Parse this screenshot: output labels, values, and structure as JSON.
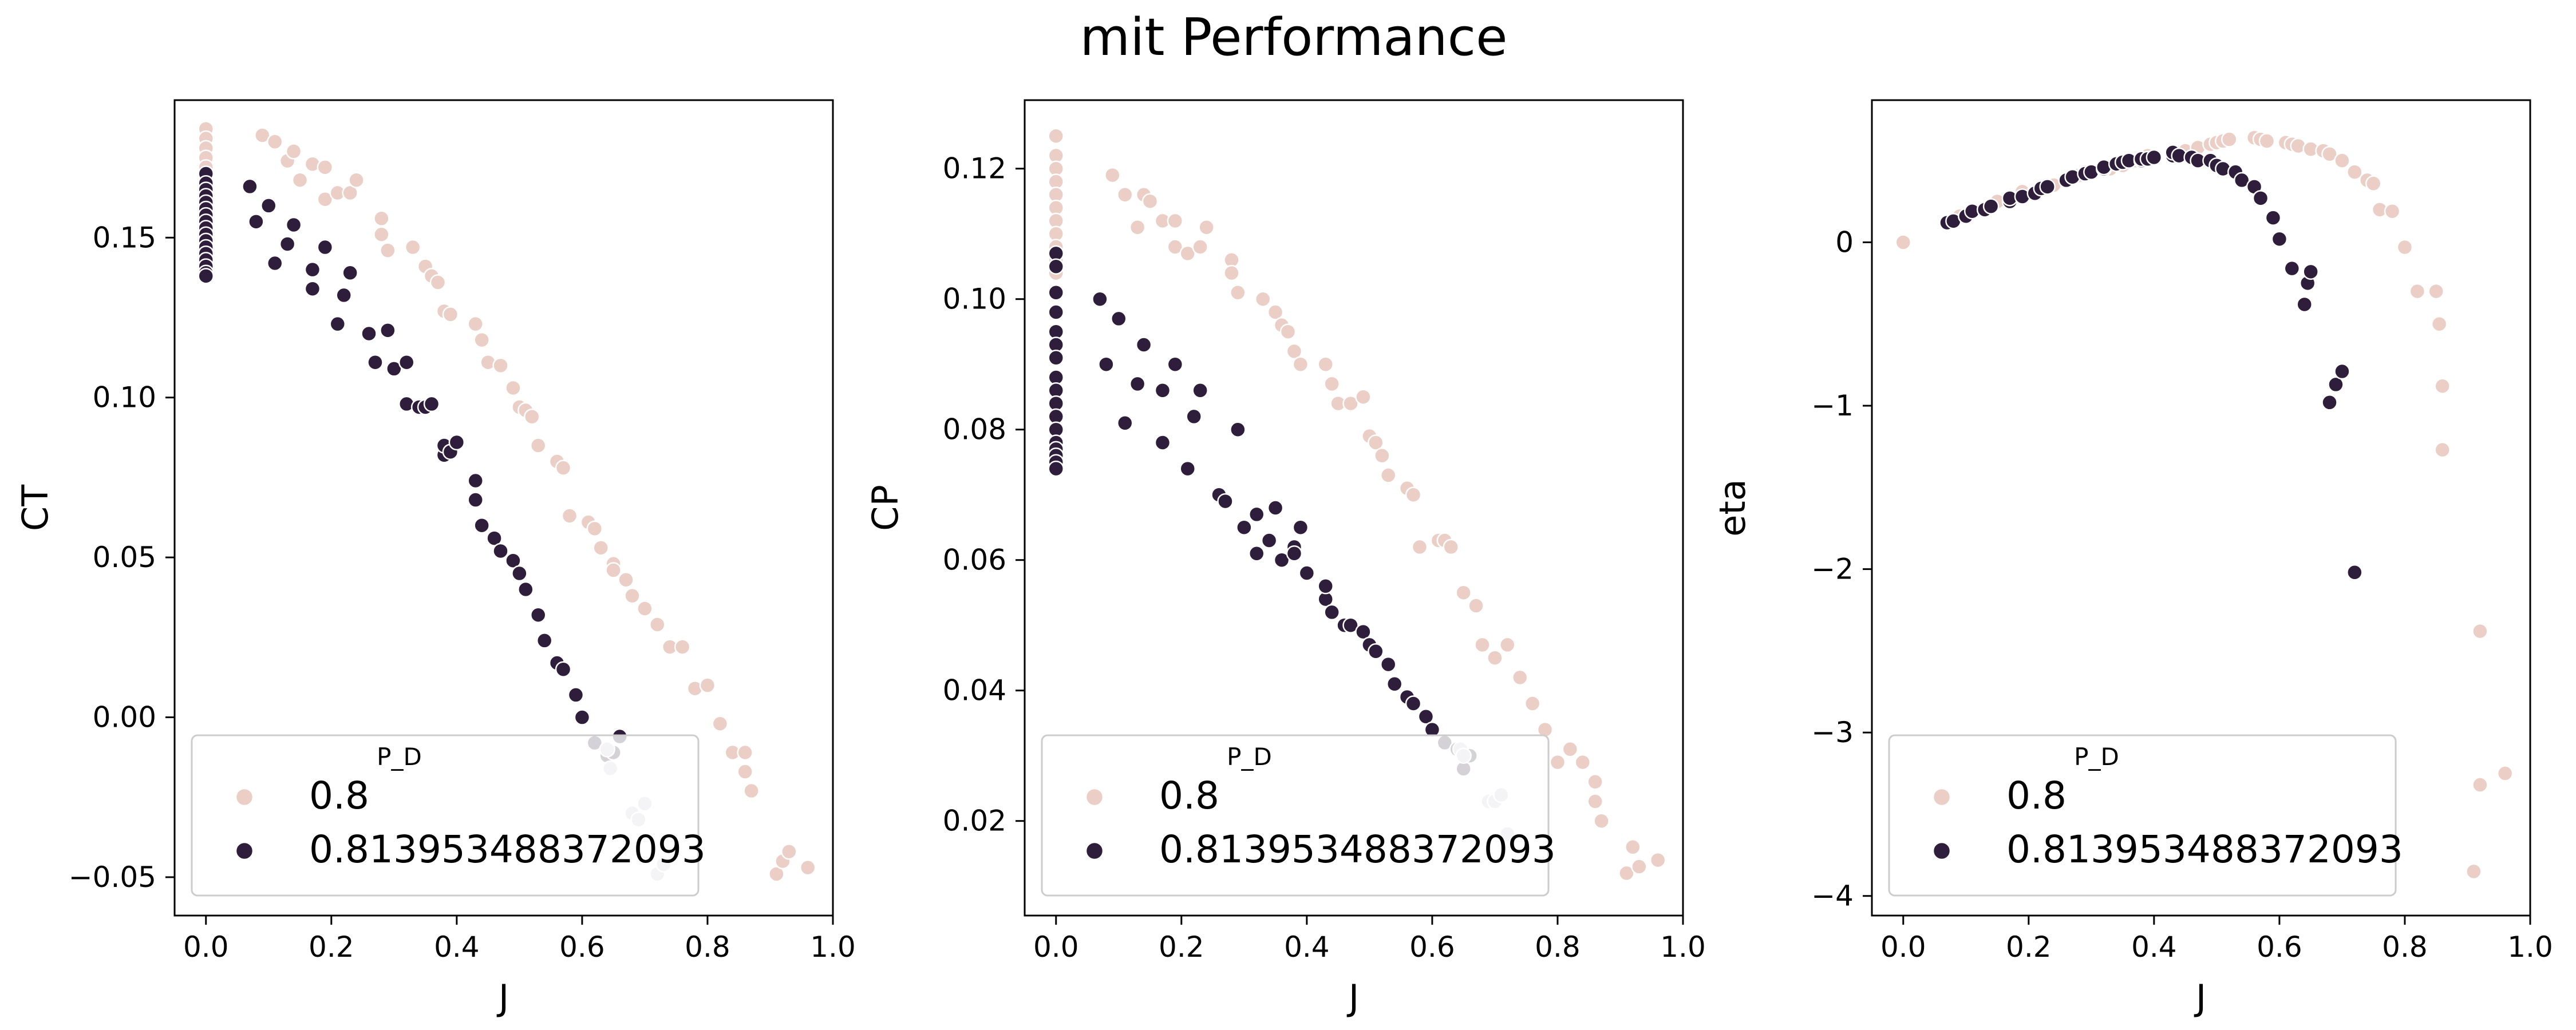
{
  "figure": {
    "title": "mit Performance",
    "legend": {
      "title": "P_D",
      "entries": [
        "0.8",
        "0.813953488372093"
      ]
    }
  },
  "colors": {
    "series_0.8": "#ebcfc6",
    "series_0.813953488372093": "#2e1e3b",
    "axes": "#000000"
  },
  "chart_data": [
    {
      "type": "scatter",
      "xlabel": "J",
      "ylabel": "CT",
      "xlim": [
        -0.05,
        1.0
      ],
      "ylim": [
        -0.062,
        0.193
      ],
      "xticks": [
        "0.0",
        "0.2",
        "0.4",
        "0.6",
        "0.8",
        "1.0"
      ],
      "yticks": [
        "−0.05",
        "0.00",
        "0.05",
        "0.10",
        "0.15"
      ],
      "legend_position": "lower left",
      "series": [
        {
          "name": "0.8",
          "x": [
            0,
            0,
            0,
            0,
            0,
            0,
            0,
            0,
            0,
            0,
            0,
            0,
            0.09,
            0.11,
            0.13,
            0.14,
            0.15,
            0.17,
            0.19,
            0.19,
            0.21,
            0.23,
            0.24,
            0.28,
            0.28,
            0.29,
            0.33,
            0.35,
            0.36,
            0.37,
            0.38,
            0.39,
            0.43,
            0.44,
            0.45,
            0.47,
            0.49,
            0.5,
            0.51,
            0.52,
            0.53,
            0.56,
            0.57,
            0.58,
            0.61,
            0.62,
            0.63,
            0.65,
            0.65,
            0.67,
            0.68,
            0.7,
            0.72,
            0.74,
            0.76,
            0.78,
            0.8,
            0.82,
            0.84,
            0.86,
            0.86,
            0.87,
            0.91,
            0.92,
            0.93,
            0.96
          ],
          "y": [
            0.184,
            0.181,
            0.178,
            0.175,
            0.172,
            0.169,
            0.166,
            0.163,
            0.16,
            0.157,
            0.154,
            0.151,
            0.182,
            0.18,
            0.174,
            0.177,
            0.168,
            0.173,
            0.172,
            0.162,
            0.164,
            0.164,
            0.168,
            0.156,
            0.151,
            0.146,
            0.147,
            0.141,
            0.138,
            0.136,
            0.127,
            0.126,
            0.123,
            0.118,
            0.111,
            0.11,
            0.103,
            0.097,
            0.096,
            0.094,
            0.085,
            0.08,
            0.078,
            0.063,
            0.061,
            0.059,
            0.053,
            0.048,
            0.046,
            0.043,
            0.038,
            0.034,
            0.029,
            0.022,
            0.022,
            0.009,
            0.01,
            -0.002,
            -0.011,
            -0.011,
            -0.017,
            -0.023,
            -0.049,
            -0.045,
            -0.042,
            -0.047
          ]
        },
        {
          "name": "0.813953488372093",
          "x": [
            0,
            0,
            0,
            0,
            0,
            0,
            0,
            0,
            0,
            0,
            0,
            0,
            0,
            0,
            0,
            0,
            0,
            0.07,
            0.08,
            0.1,
            0.11,
            0.13,
            0.14,
            0.17,
            0.17,
            0.19,
            0.21,
            0.22,
            0.23,
            0.26,
            0.27,
            0.29,
            0.3,
            0.32,
            0.32,
            0.34,
            0.35,
            0.36,
            0.38,
            0.38,
            0.39,
            0.4,
            0.43,
            0.43,
            0.44,
            0.46,
            0.47,
            0.49,
            0.5,
            0.51,
            0.53,
            0.54,
            0.56,
            0.57,
            0.59,
            0.6,
            0.62,
            0.64,
            0.65,
            0.66
          ],
          "y": [
            0.17,
            0.167,
            0.165,
            0.163,
            0.161,
            0.159,
            0.157,
            0.155,
            0.153,
            0.151,
            0.149,
            0.147,
            0.145,
            0.143,
            0.141,
            0.139,
            0.138,
            0.166,
            0.155,
            0.16,
            0.142,
            0.148,
            0.154,
            0.134,
            0.14,
            0.147,
            0.123,
            0.132,
            0.139,
            0.12,
            0.111,
            0.121,
            0.109,
            0.098,
            0.111,
            0.097,
            0.097,
            0.098,
            0.082,
            0.085,
            0.083,
            0.086,
            0.068,
            0.074,
            0.06,
            0.056,
            0.052,
            0.049,
            0.045,
            0.04,
            0.032,
            0.024,
            0.017,
            0.015,
            0.007,
            0.0,
            -0.008,
            -0.012,
            -0.011,
            -0.006
          ]
        },
        {
          "name": "",
          "x": [
            0.64,
            0.645,
            0.68,
            0.69,
            0.7,
            0.72,
            0.73
          ],
          "y": [
            -0.01,
            -0.016,
            -0.03,
            -0.032,
            -0.027,
            -0.049,
            -0.046
          ]
        }
      ]
    },
    {
      "type": "scatter",
      "xlabel": "J",
      "ylabel": "CP",
      "xlim": [
        -0.05,
        1.0
      ],
      "ylim": [
        0.0055,
        0.1305
      ],
      "xticks": [
        "0.0",
        "0.2",
        "0.4",
        "0.6",
        "0.8",
        "1.0"
      ],
      "yticks": [
        "0.02",
        "0.04",
        "0.06",
        "0.08",
        "0.10",
        "0.12"
      ],
      "legend_position": "lower left",
      "series": [
        {
          "name": "0.8",
          "x": [
            0,
            0,
            0,
            0,
            0,
            0,
            0,
            0,
            0,
            0,
            0,
            0,
            0.09,
            0.11,
            0.13,
            0.14,
            0.15,
            0.17,
            0.19,
            0.19,
            0.21,
            0.23,
            0.24,
            0.28,
            0.28,
            0.29,
            0.33,
            0.35,
            0.36,
            0.37,
            0.38,
            0.39,
            0.43,
            0.44,
            0.45,
            0.47,
            0.49,
            0.5,
            0.51,
            0.52,
            0.53,
            0.56,
            0.57,
            0.58,
            0.61,
            0.62,
            0.63,
            0.65,
            0.65,
            0.67,
            0.68,
            0.7,
            0.72,
            0.74,
            0.76,
            0.78,
            0.8,
            0.82,
            0.84,
            0.86,
            0.86,
            0.87,
            0.91,
            0.92,
            0.93,
            0.96
          ],
          "y": [
            0.125,
            0.122,
            0.12,
            0.118,
            0.116,
            0.114,
            0.112,
            0.11,
            0.108,
            0.106,
            0.105,
            0.104,
            0.119,
            0.116,
            0.111,
            0.116,
            0.115,
            0.112,
            0.108,
            0.112,
            0.107,
            0.108,
            0.111,
            0.106,
            0.104,
            0.101,
            0.1,
            0.098,
            0.096,
            0.095,
            0.092,
            0.09,
            0.09,
            0.087,
            0.084,
            0.084,
            0.085,
            0.079,
            0.078,
            0.076,
            0.073,
            0.071,
            0.07,
            0.062,
            0.063,
            0.063,
            0.062,
            0.055,
            0.055,
            0.053,
            0.047,
            0.045,
            0.047,
            0.042,
            0.038,
            0.034,
            0.029,
            0.031,
            0.029,
            0.026,
            0.023,
            0.02,
            0.012,
            0.016,
            0.013,
            0.014
          ]
        },
        {
          "name": "0.813953488372093",
          "x": [
            0,
            0,
            0,
            0,
            0,
            0,
            0,
            0,
            0,
            0,
            0,
            0,
            0,
            0,
            0,
            0,
            0,
            0.07,
            0.08,
            0.1,
            0.11,
            0.13,
            0.14,
            0.17,
            0.17,
            0.19,
            0.21,
            0.22,
            0.23,
            0.26,
            0.27,
            0.29,
            0.3,
            0.32,
            0.32,
            0.34,
            0.35,
            0.36,
            0.38,
            0.38,
            0.39,
            0.4,
            0.43,
            0.43,
            0.44,
            0.46,
            0.47,
            0.49,
            0.5,
            0.51,
            0.53,
            0.54,
            0.56,
            0.57,
            0.59,
            0.6,
            0.62,
            0.64,
            0.65,
            0.66
          ],
          "y": [
            0.107,
            0.105,
            0.101,
            0.098,
            0.095,
            0.093,
            0.091,
            0.088,
            0.086,
            0.084,
            0.082,
            0.08,
            0.078,
            0.077,
            0.076,
            0.075,
            0.074,
            0.1,
            0.09,
            0.097,
            0.081,
            0.087,
            0.093,
            0.078,
            0.086,
            0.09,
            0.074,
            0.082,
            0.086,
            0.07,
            0.069,
            0.08,
            0.065,
            0.061,
            0.067,
            0.063,
            0.068,
            0.06,
            0.062,
            0.061,
            0.065,
            0.058,
            0.054,
            0.056,
            0.052,
            0.05,
            0.05,
            0.049,
            0.047,
            0.046,
            0.044,
            0.041,
            0.039,
            0.038,
            0.036,
            0.034,
            0.032,
            0.031,
            0.028,
            0.03
          ]
        },
        {
          "name": "",
          "x": [
            0.645,
            0.65,
            0.69,
            0.7,
            0.71,
            0.72
          ],
          "y": [
            0.031,
            0.03,
            0.023,
            0.023,
            0.024,
            0.018
          ]
        }
      ]
    },
    {
      "type": "scatter",
      "xlabel": "J",
      "ylabel": "eta",
      "xlim": [
        -0.05,
        1.0
      ],
      "ylim": [
        -4.12,
        0.87
      ],
      "xticks": [
        "0.0",
        "0.2",
        "0.4",
        "0.6",
        "0.8",
        "1.0"
      ],
      "yticks": [
        "−4",
        "−3",
        "−2",
        "−1",
        "0"
      ],
      "legend_position": "lower left",
      "series": [
        {
          "name": "0.8",
          "x": [
            0,
            0.09,
            0.11,
            0.13,
            0.14,
            0.15,
            0.17,
            0.19,
            0.19,
            0.21,
            0.23,
            0.24,
            0.28,
            0.28,
            0.29,
            0.33,
            0.35,
            0.36,
            0.37,
            0.38,
            0.39,
            0.43,
            0.44,
            0.45,
            0.47,
            0.49,
            0.5,
            0.51,
            0.52,
            0.56,
            0.57,
            0.58,
            0.61,
            0.62,
            0.63,
            0.65,
            0.67,
            0.68,
            0.7,
            0.72,
            0.74,
            0.75,
            0.76,
            0.78,
            0.8,
            0.82,
            0.85,
            0.855,
            0.86,
            0.86,
            0.91,
            0.92,
            0.92,
            0.96
          ],
          "y": [
            0.0,
            0.16,
            0.19,
            0.2,
            0.23,
            0.25,
            0.25,
            0.28,
            0.31,
            0.31,
            0.35,
            0.35,
            0.41,
            0.41,
            0.43,
            0.45,
            0.47,
            0.5,
            0.5,
            0.52,
            0.53,
            0.55,
            0.55,
            0.56,
            0.58,
            0.6,
            0.61,
            0.62,
            0.63,
            0.64,
            0.63,
            0.62,
            0.61,
            0.6,
            0.59,
            0.57,
            0.56,
            0.54,
            0.5,
            0.43,
            0.38,
            0.36,
            0.2,
            0.19,
            -0.03,
            -0.3,
            -0.3,
            -0.5,
            -0.88,
            -1.27,
            -3.85,
            -3.32,
            -2.38,
            -3.25
          ]
        },
        {
          "name": "0.813953488372093",
          "x": [
            0.07,
            0.08,
            0.1,
            0.11,
            0.13,
            0.14,
            0.17,
            0.17,
            0.19,
            0.21,
            0.22,
            0.23,
            0.26,
            0.27,
            0.29,
            0.3,
            0.32,
            0.32,
            0.34,
            0.35,
            0.36,
            0.38,
            0.38,
            0.39,
            0.4,
            0.43,
            0.43,
            0.44,
            0.46,
            0.47,
            0.49,
            0.5,
            0.51,
            0.53,
            0.54,
            0.56,
            0.57,
            0.59,
            0.6,
            0.62,
            0.64,
            0.645,
            0.65,
            0.68,
            0.69,
            0.7,
            0.72
          ],
          "y": [
            0.12,
            0.13,
            0.16,
            0.19,
            0.2,
            0.22,
            0.25,
            0.27,
            0.28,
            0.3,
            0.33,
            0.34,
            0.38,
            0.4,
            0.42,
            0.43,
            0.45,
            0.46,
            0.48,
            0.49,
            0.5,
            0.5,
            0.51,
            0.51,
            0.52,
            0.53,
            0.55,
            0.53,
            0.52,
            0.5,
            0.5,
            0.47,
            0.45,
            0.43,
            0.38,
            0.34,
            0.27,
            0.15,
            0.02,
            -0.16,
            -0.38,
            -0.25,
            -0.18,
            -0.98,
            -0.87,
            -0.79,
            -2.02
          ]
        },
        {
          "name": "",
          "x": [],
          "y": []
        }
      ]
    }
  ]
}
